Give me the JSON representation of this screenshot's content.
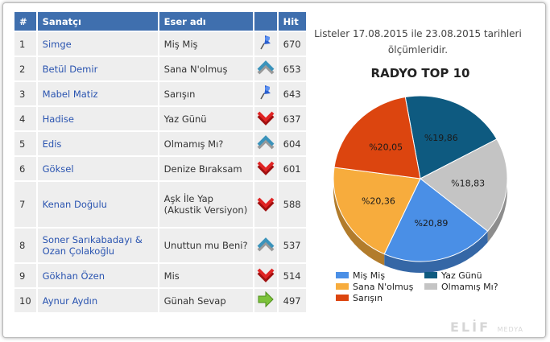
{
  "table": {
    "headers": [
      "#",
      "Sanatçı",
      "Eser adı",
      "Hit"
    ],
    "rows": [
      [
        1,
        "Simge",
        "Miş Miş",
        670
      ],
      [
        2,
        "Betül Demir",
        "Sana N'olmuş",
        653
      ],
      [
        3,
        "Mabel Matiz",
        "Sarışın",
        643
      ],
      [
        4,
        "Hadise",
        "Yaz Günü",
        637
      ],
      [
        5,
        "Edis",
        "Olmamış Mı?",
        604
      ],
      [
        6,
        "Göksel",
        "Denize Bıraksam",
        601
      ],
      [
        7,
        "Kenan Doğulu",
        "Aşk İle Yap (Akustik Versiyon)",
        588
      ],
      [
        8,
        "Soner Sarıkabadayı & Ozan Çolakoğlu",
        "Unuttun mu Beni?",
        537
      ],
      [
        9,
        "Gökhan Özen",
        "Mis",
        514
      ],
      [
        10,
        "Aynur Aydın",
        "Günah Sevap",
        497
      ]
    ]
  },
  "chart_data": {
    "type": "pie",
    "caption": "Listeler 17.08.2015 ile 23.08.2015 tarihleri ölçümleridir.",
    "title": "RADYO TOP 10",
    "categories": [
      "Yaz Günü",
      "Olmamış Mı?",
      "Miş Miş",
      "Sana N'olmuş",
      "Sarışın"
    ],
    "values": [
      19.86,
      18.83,
      20.89,
      20.36,
      20.05
    ],
    "value_labels": [
      "%19,86",
      "%18,83",
      "%20,89",
      "%20,36",
      "%20,05"
    ],
    "colors": [
      "#0e5a80",
      "#c4c4c4",
      "#4a8fe6",
      "#f7ac3d",
      "#dc450f"
    ]
  },
  "logo": {
    "name": "ELİF",
    "sub": "MEDYA"
  }
}
